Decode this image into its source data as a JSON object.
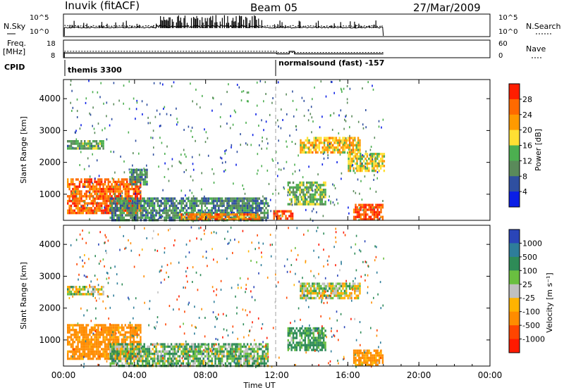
{
  "header": {
    "station": "Inuvik (fitACF)",
    "beam": "Beam 05",
    "date": "27/Mar/2009"
  },
  "left_labels": {
    "nsky": "N.Sky",
    "freq_line1": "Freq.",
    "freq_line2": "[MHz]",
    "cpid": "CPID"
  },
  "right_labels": {
    "nsearch": "N.Search",
    "nave": "Nave"
  },
  "cpid_modes": [
    "themis 3300",
    "normalsound (fast) -157"
  ],
  "colors": {
    "power_scale": [
      "#0a1ee6",
      "#2f4fa0",
      "#5a8a5a",
      "#4caf50",
      "#ffe033",
      "#ff9a00",
      "#ff6a00",
      "#ff1e00"
    ],
    "velocity_scale": [
      "#2a45b8",
      "#2e7d9a",
      "#2e8b57",
      "#6abf40",
      "#c0c0c0",
      "#ffb300",
      "#ff8c00",
      "#ff4500",
      "#ff1a00"
    ],
    "grid_dash": "#a0a0a0"
  },
  "chart_data": [
    {
      "type": "line",
      "name": "noise-panel",
      "ylabel_left": "N.Sky",
      "ylabel_right": "N.Search",
      "left_ticks": [
        "10^5",
        "10^0"
      ],
      "right_ticks": [
        "10^5",
        "10^0"
      ],
      "xlim": [
        0,
        24
      ],
      "x_end_data": 18.0
    },
    {
      "type": "line",
      "name": "freq-panel",
      "ylabel_left": "Freq. [MHz]",
      "ylabel_right": "Nave",
      "left_ticks": [
        "18",
        "8"
      ],
      "right_ticks": [
        "60",
        "0"
      ],
      "ylim_left": [
        8,
        18
      ],
      "ylim_right": [
        0,
        60
      ],
      "freq_series": {
        "x": [
          0.05,
          12.0,
          12.0,
          12.7,
          12.7,
          13.0,
          13.0,
          18.0
        ],
        "y": [
          10.7,
          10.7,
          10.2,
          10.2,
          11.6,
          11.6,
          10.2,
          10.2
        ]
      },
      "nave_series": {
        "x": [
          0.05,
          12.0,
          12.0,
          18.0
        ],
        "y": [
          22,
          22,
          18,
          18
        ]
      }
    },
    {
      "type": "heatmap",
      "name": "power",
      "ylabel": "Slant Range [km]",
      "yticks": [
        "1000",
        "2000",
        "3000",
        "4000"
      ],
      "ylim": [
        180,
        4600
      ],
      "xlim": [
        0,
        24
      ],
      "colorbar_label": "Power [dB]",
      "colorbar_ticks": [
        "28",
        "24",
        "20",
        "16",
        "12",
        "8",
        "4"
      ],
      "clim": [
        0,
        32
      ],
      "regions": [
        {
          "t": [
            0.2,
            4.3
          ],
          "r": [
            400,
            1500
          ],
          "level": 26
        },
        {
          "t": [
            0.2,
            2.2
          ],
          "r": [
            2400,
            2700
          ],
          "level": 12
        },
        {
          "t": [
            3.7,
            4.7
          ],
          "r": [
            1300,
            1800
          ],
          "level": 10
        },
        {
          "t": [
            2.6,
            11.5
          ],
          "r": [
            200,
            900
          ],
          "level": 10
        },
        {
          "t": [
            6.5,
            11.0
          ],
          "r": [
            200,
            400
          ],
          "level": 24
        },
        {
          "t": [
            11.8,
            12.9
          ],
          "r": [
            200,
            500
          ],
          "level": 28
        },
        {
          "t": [
            12.6,
            14.7
          ],
          "r": [
            700,
            1400
          ],
          "level": 14
        },
        {
          "t": [
            13.3,
            16.7
          ],
          "r": [
            2300,
            2800
          ],
          "level": 20
        },
        {
          "t": [
            16.0,
            18.0
          ],
          "r": [
            1700,
            2300
          ],
          "level": 18
        },
        {
          "t": [
            16.3,
            18.0
          ],
          "r": [
            200,
            700
          ],
          "level": 28
        }
      ]
    },
    {
      "type": "heatmap",
      "name": "velocity",
      "ylabel": "Slant Range [km]",
      "yticks": [
        "1000",
        "2000",
        "3000",
        "4000"
      ],
      "ylim": [
        180,
        4600
      ],
      "xlim": [
        0,
        24
      ],
      "colorbar_label": "Velocity [m s⁻¹]",
      "colorbar_ticks": [
        "1000",
        "500",
        "100",
        "25",
        "-25",
        "-100",
        "-500",
        "-1000"
      ],
      "regions": [
        {
          "t": [
            0.2,
            4.3
          ],
          "r": [
            400,
            1500
          ],
          "level": -200
        },
        {
          "t": [
            0.2,
            2.2
          ],
          "r": [
            2400,
            2700
          ],
          "level": 0
        },
        {
          "t": [
            2.6,
            11.5
          ],
          "r": [
            200,
            900
          ],
          "level": 80
        },
        {
          "t": [
            12.6,
            14.7
          ],
          "r": [
            700,
            1400
          ],
          "level": 150
        },
        {
          "t": [
            13.3,
            16.7
          ],
          "r": [
            2300,
            2800
          ],
          "level": 0
        },
        {
          "t": [
            16.3,
            18.0
          ],
          "r": [
            200,
            700
          ],
          "level": -150
        }
      ]
    }
  ],
  "x_axis": {
    "ticks": [
      "00:00",
      "04:00",
      "08:00",
      "12:00",
      "16:00",
      "20:00",
      "00:00"
    ],
    "label": "Time UT"
  }
}
